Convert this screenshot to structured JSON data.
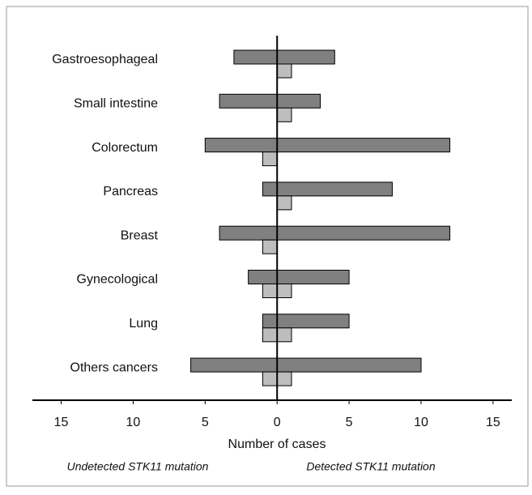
{
  "chart_data": {
    "type": "butterfly-bar",
    "categories": [
      "Gastroesophageal",
      "Small intestine",
      "Colorectum",
      "Pancreas",
      "Breast",
      "Gynecological",
      "Lung",
      "Others cancers"
    ],
    "series": [
      {
        "color": "#808080",
        "values": [
          -3,
          -4,
          -5,
          -1,
          -4,
          -2,
          -1,
          -6
        ]
      },
      {
        "color": "#808080",
        "values": [
          4,
          3,
          12,
          8,
          12,
          5,
          5,
          10
        ]
      },
      {
        "color": "#bdbdbd",
        "values": [
          0,
          0,
          -1,
          0,
          -1,
          -1,
          -1,
          -1
        ]
      },
      {
        "color": "#bdbdbd",
        "values": [
          1,
          1,
          0,
          1,
          0,
          1,
          1,
          1
        ]
      }
    ],
    "xlim": [
      -17,
      16.3
    ],
    "xticks": [
      {
        "value": -15,
        "label": "15"
      },
      {
        "value": -10,
        "label": "10"
      },
      {
        "value": -5,
        "label": "5"
      },
      0,
      5,
      10,
      15
    ],
    "x_label": "Number of cases",
    "annotations": [
      "Undetected STK11 mutation",
      "Detected STK11 mutation"
    ]
  }
}
